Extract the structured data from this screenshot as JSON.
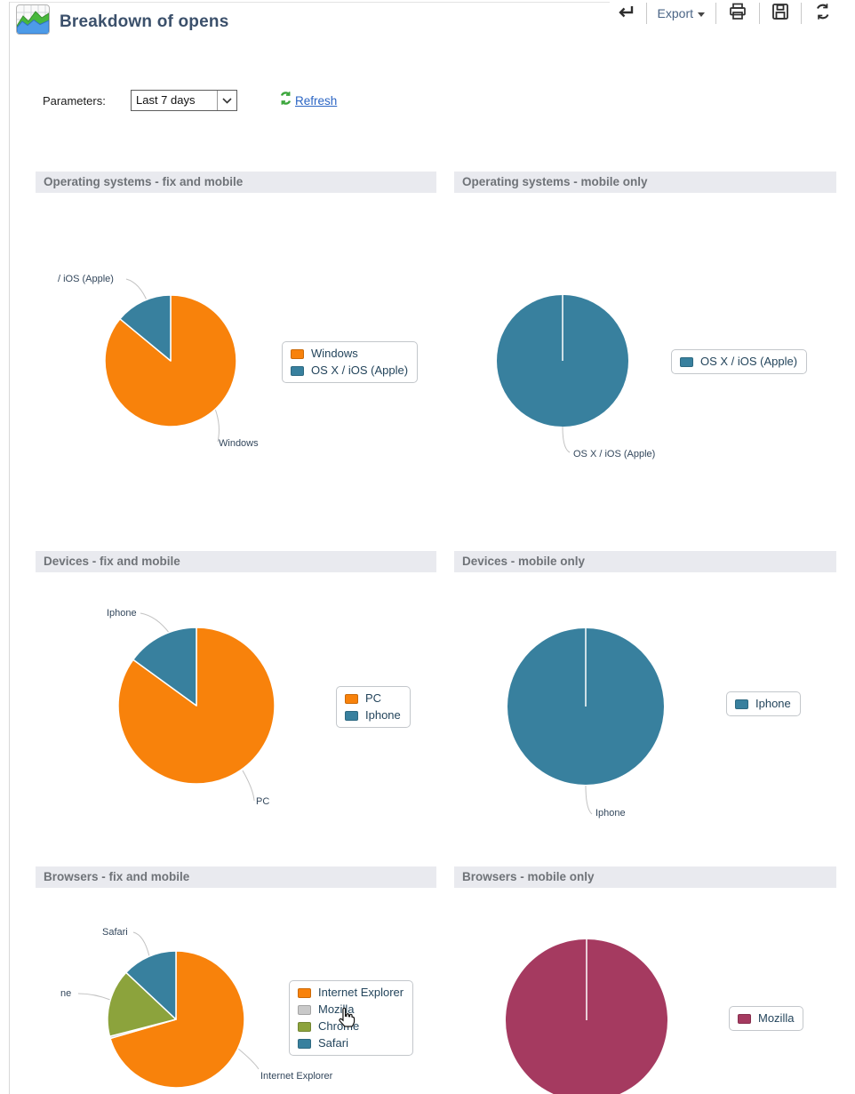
{
  "header": {
    "title": "Breakdown of opens",
    "app_icon": "chart-icon"
  },
  "toolbar": {
    "export_label": "Export",
    "icons": {
      "back": "back-arrow-icon",
      "export_caret": "chevron-down-icon",
      "print": "printer-icon",
      "save": "save-icon",
      "reload": "reload-icon"
    }
  },
  "parameters": {
    "label": "Parameters:",
    "range_value": "Last 7 days",
    "refresh_label": "Refresh",
    "refresh_icon": "refresh-icon",
    "select_arrow_icon": "chevron-down-icon"
  },
  "colors": {
    "orange": "#F8820B",
    "teal": "#38809E",
    "green": "#8CA33C",
    "gray": "#C9C9C9",
    "maroon": "#A53A60",
    "link_blue": "#2B65C4",
    "refresh_green": "#3CA63C",
    "section_header_bg": "#E9EAEF",
    "callout_line": "#C2C2C2"
  },
  "cursor": "hand-cursor-icon",
  "chart_data": [
    {
      "type": "pie",
      "title": "Operating systems - fix and mobile",
      "labels": [
        "Windows",
        "OS X / iOS (Apple)"
      ],
      "values": [
        86,
        14
      ],
      "colors": [
        "#F8820B",
        "#38809E"
      ],
      "legend_position": "right",
      "callouts": [
        "/ iOS (Apple)",
        "Windows"
      ]
    },
    {
      "type": "pie",
      "title": "Operating systems - mobile only",
      "labels": [
        "OS X / iOS (Apple)"
      ],
      "values": [
        100
      ],
      "colors": [
        "#38809E"
      ],
      "legend_position": "right",
      "callouts": [
        "OS X / iOS (Apple)"
      ]
    },
    {
      "type": "pie",
      "title": "Devices - fix and mobile",
      "labels": [
        "PC",
        "Iphone"
      ],
      "values": [
        85,
        15
      ],
      "colors": [
        "#F8820B",
        "#38809E"
      ],
      "legend_position": "right",
      "callouts": [
        "Iphone",
        "PC"
      ]
    },
    {
      "type": "pie",
      "title": "Devices - mobile only",
      "labels": [
        "Iphone"
      ],
      "values": [
        100
      ],
      "colors": [
        "#38809E"
      ],
      "legend_position": "right",
      "callouts": [
        "Iphone"
      ]
    },
    {
      "type": "pie",
      "title": "Browsers - fix and mobile",
      "labels": [
        "Internet Explorer",
        "Mozilla",
        "Chrome",
        "Safari"
      ],
      "values": [
        70.5,
        0.5,
        16,
        13
      ],
      "colors": [
        "#F8820B",
        "#C9C9C9",
        "#8CA33C",
        "#38809E"
      ],
      "legend_position": "right",
      "callouts": [
        "Safari",
        "ne",
        "Internet Explorer"
      ]
    },
    {
      "type": "pie",
      "title": "Browsers - mobile only",
      "labels": [
        "Mozilla"
      ],
      "values": [
        100
      ],
      "colors": [
        "#A53A60"
      ],
      "legend_position": "right",
      "callouts": []
    }
  ]
}
